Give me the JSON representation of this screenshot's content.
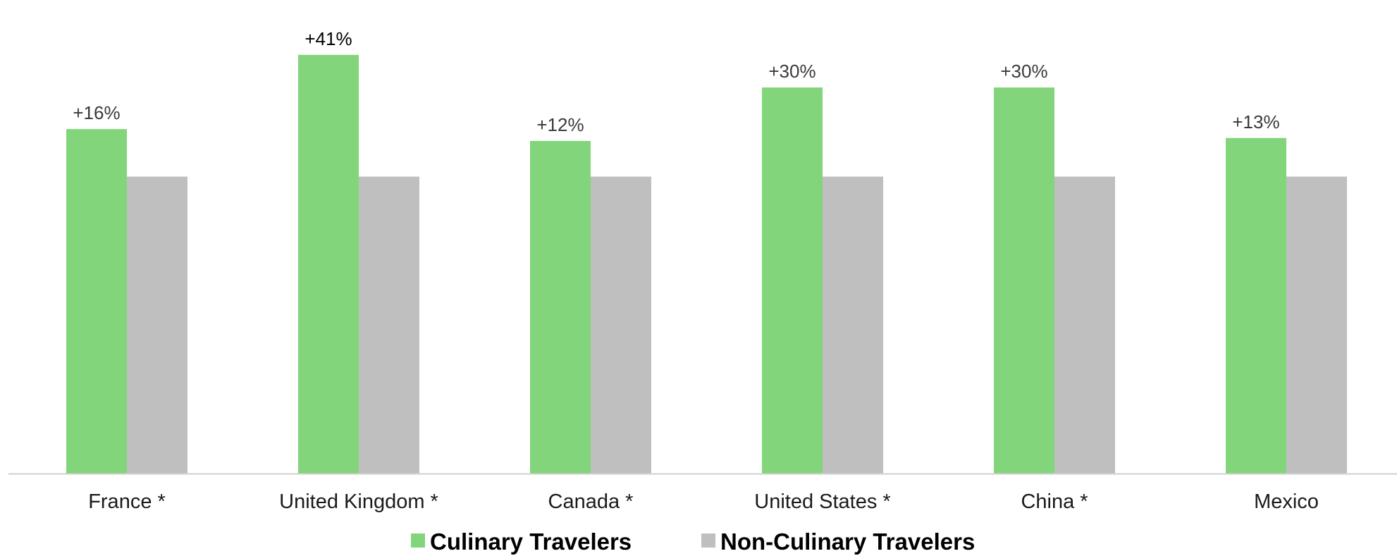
{
  "chart_data": {
    "type": "bar",
    "categories": [
      "France *",
      "United Kingdom *",
      "Canada *",
      "United States *",
      "China *",
      "Mexico"
    ],
    "series": [
      {
        "name": "Culinary Travelers",
        "values": [
          116,
          141,
          112,
          130,
          130,
          113
        ],
        "color": "#82d57a"
      },
      {
        "name": "Non-Culinary Travelers",
        "values": [
          100,
          100,
          100,
          100,
          100,
          100
        ],
        "color": "#bfbfbf"
      }
    ],
    "data_labels": [
      "+16%",
      "+41%",
      "+12%",
      "+30%",
      "+30%",
      "+13%"
    ],
    "ylim": [
      0,
      150
    ],
    "grid": false,
    "legend_position": "bottom",
    "title": "",
    "xlabel": "",
    "ylabel": ""
  }
}
